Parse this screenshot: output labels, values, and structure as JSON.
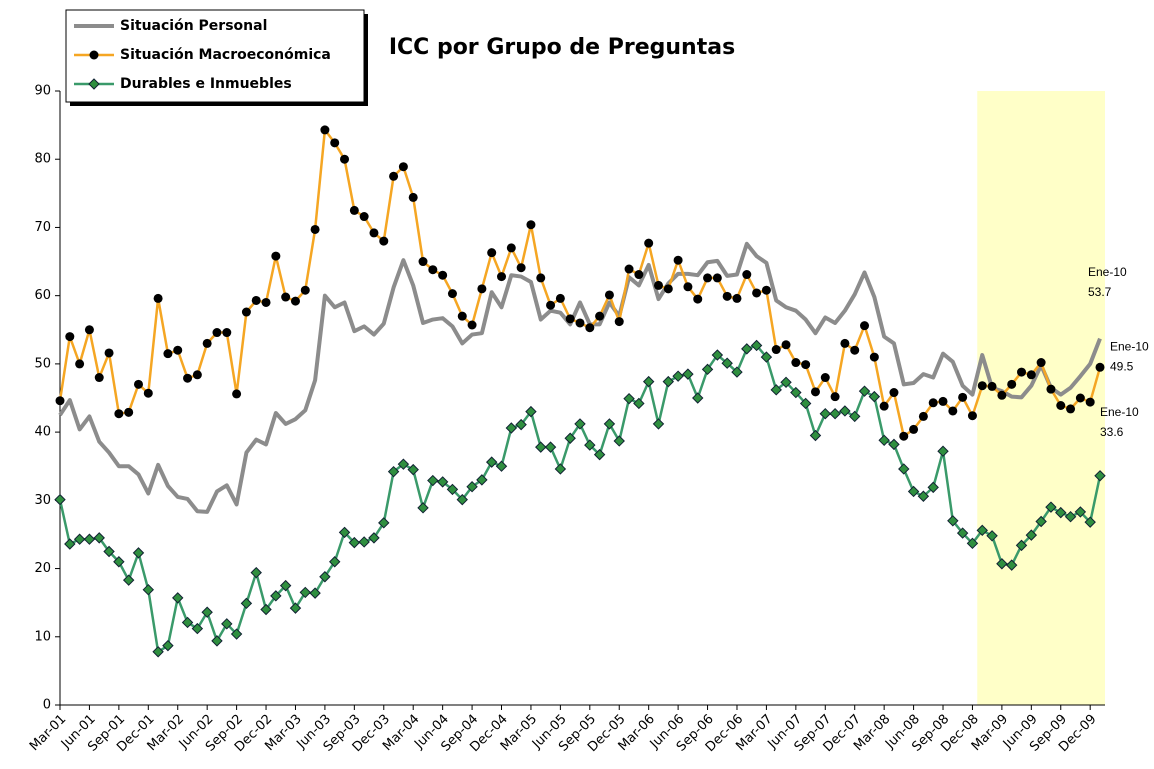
{
  "chart_data": {
    "type": "line",
    "title": "ICC por Grupo de Preguntas",
    "categories": [
      "Mar-01",
      null,
      null,
      "Jun-01",
      null,
      null,
      "Sep-01",
      null,
      null,
      "Dec-01",
      null,
      null,
      "Mar-02",
      null,
      null,
      "Jun-02",
      null,
      null,
      "Sep-02",
      null,
      null,
      "Dec-02",
      null,
      null,
      "Mar-03",
      null,
      null,
      "Jun-03",
      null,
      null,
      "Sep-03",
      null,
      null,
      "Dec-03",
      null,
      null,
      "Mar-04",
      null,
      null,
      "Jun-04",
      null,
      null,
      "Sep-04",
      null,
      null,
      "Dec-04",
      null,
      null,
      "Mar-05",
      null,
      null,
      "Jun-05",
      null,
      null,
      "Sep-05",
      null,
      null,
      "Dec-05",
      null,
      null,
      "Mar-06",
      null,
      null,
      "Jun-06",
      null,
      null,
      "Sep-06",
      null,
      null,
      "Dec-06",
      null,
      null,
      "Mar-07",
      null,
      null,
      "Jun-07",
      null,
      null,
      "Sep-07",
      null,
      null,
      "Dec-07",
      null,
      null,
      "Mar-08",
      null,
      null,
      "Jun-08",
      null,
      null,
      "Sep-08",
      null,
      null,
      "Dec-08",
      null,
      null,
      "Mar-09",
      null,
      null,
      "Jun-09",
      null,
      null,
      "Sep-09",
      null,
      null,
      "Dec-09",
      null
    ],
    "series": [
      {
        "name": "Situación Personal",
        "color": "#8c8c8c",
        "marker": "none",
        "values": [
          42.5,
          44.7,
          40.4,
          42.3,
          38.6,
          37,
          35,
          35,
          33.8,
          31,
          35.2,
          32.1,
          30.5,
          30.2,
          28.4,
          28.3,
          31.3,
          32.2,
          29.4,
          37,
          38.9,
          38.2,
          42.8,
          41.2,
          41.9,
          43.2,
          47.6,
          60,
          58.3,
          59,
          54.8,
          55.5,
          54.3,
          55.9,
          61.2,
          65.2,
          61.5,
          56,
          56.5,
          56.7,
          55.5,
          53,
          54.3,
          54.5,
          60.5,
          58.3,
          63,
          62.8,
          62,
          56.5,
          57.8,
          57.5,
          55.8,
          59,
          55.8,
          55.8,
          59,
          57,
          62.7,
          61.5,
          64.5,
          59.5,
          61.8,
          63.2,
          63.2,
          63,
          64.9,
          65.1,
          62.9,
          63.1,
          67.6,
          65.8,
          64.8,
          59.3,
          58.3,
          57.8,
          56.5,
          54.5,
          56.8,
          56,
          57.8,
          60.2,
          63.4,
          59.8,
          54,
          53,
          47,
          47.2,
          48.5,
          48,
          51.5,
          50.3,
          46.8,
          45.5,
          51.3,
          46.5,
          46,
          45.2,
          45.1,
          46.8,
          49.8,
          46.5,
          45.5,
          46.5,
          48.2,
          50,
          53.7
        ]
      },
      {
        "name": "Situación Macroeconómica",
        "color": "#f5a623",
        "marker": "circle",
        "values": [
          44.6,
          54,
          50,
          55,
          48,
          51.6,
          42.7,
          42.9,
          47,
          45.7,
          59.6,
          51.5,
          52,
          47.9,
          48.4,
          53,
          54.6,
          54.6,
          45.6,
          57.6,
          59.3,
          59,
          65.8,
          59.8,
          59.2,
          60.8,
          69.7,
          84.3,
          82.4,
          80,
          72.5,
          71.6,
          69.2,
          68,
          77.5,
          78.9,
          74.4,
          65,
          63.8,
          63,
          60.3,
          57,
          55.7,
          61,
          66.3,
          62.8,
          67,
          64.1,
          70.4,
          62.6,
          58.6,
          59.6,
          56.6,
          56,
          55.3,
          57,
          60.1,
          56.2,
          63.9,
          63.1,
          67.7,
          61.5,
          61,
          65.2,
          61.3,
          59.5,
          62.6,
          62.6,
          59.9,
          59.6,
          63.1,
          60.4,
          60.8,
          52.1,
          52.8,
          50.2,
          49.9,
          45.9,
          48,
          45.2,
          53,
          52,
          55.6,
          51,
          43.8,
          45.8,
          39.4,
          40.4,
          42.3,
          44.3,
          44.5,
          43.1,
          45.1,
          42.4,
          46.8,
          46.7,
          45.4,
          47,
          48.8,
          48.4,
          50.2,
          46.3,
          43.9,
          43.4,
          45,
          44.4,
          49.5
        ]
      },
      {
        "name": "Durables e Inmuebles",
        "color": "#3a9a6a",
        "marker": "diamond",
        "values": [
          30.1,
          23.6,
          24.3,
          24.3,
          24.5,
          22.5,
          21,
          18.3,
          22.3,
          16.9,
          7.8,
          8.7,
          15.7,
          12.1,
          11.2,
          13.6,
          9.4,
          11.9,
          10.4,
          14.9,
          19.4,
          14,
          16,
          17.5,
          14.2,
          16.5,
          16.4,
          18.8,
          21,
          25.3,
          23.8,
          23.9,
          24.5,
          26.7,
          34.2,
          35.3,
          34.5,
          28.9,
          32.9,
          32.7,
          31.6,
          30.1,
          32,
          33,
          35.6,
          35,
          40.6,
          41.1,
          43,
          37.8,
          37.8,
          34.6,
          39.1,
          41.2,
          38.1,
          36.7,
          41.2,
          38.7,
          44.9,
          44.2,
          47.4,
          41.2,
          47.4,
          48.2,
          48.5,
          45,
          49.2,
          51.3,
          50.1,
          48.8,
          52.2,
          52.7,
          51,
          46.2,
          47.3,
          45.8,
          44.2,
          39.5,
          42.7,
          42.7,
          43.1,
          42.3,
          46,
          45.2,
          38.8,
          38.2,
          34.6,
          31.3,
          30.6,
          31.9,
          37.2,
          27,
          25.2,
          23.7,
          25.6,
          24.8,
          20.7,
          20.5,
          23.4,
          24.9,
          26.9,
          29,
          28.2,
          27.6,
          28.3,
          26.8,
          33.6
        ]
      }
    ],
    "annotations": [
      "Ene-10",
      "Ene-10",
      "Ene-10"
    ],
    "highlight": [
      94,
      106
    ],
    "ylim": [
      0,
      90
    ],
    "yticks": [
      0,
      10,
      20,
      30,
      40,
      50,
      60,
      70,
      80,
      90
    ],
    "grid": false,
    "legend": "top-left"
  }
}
